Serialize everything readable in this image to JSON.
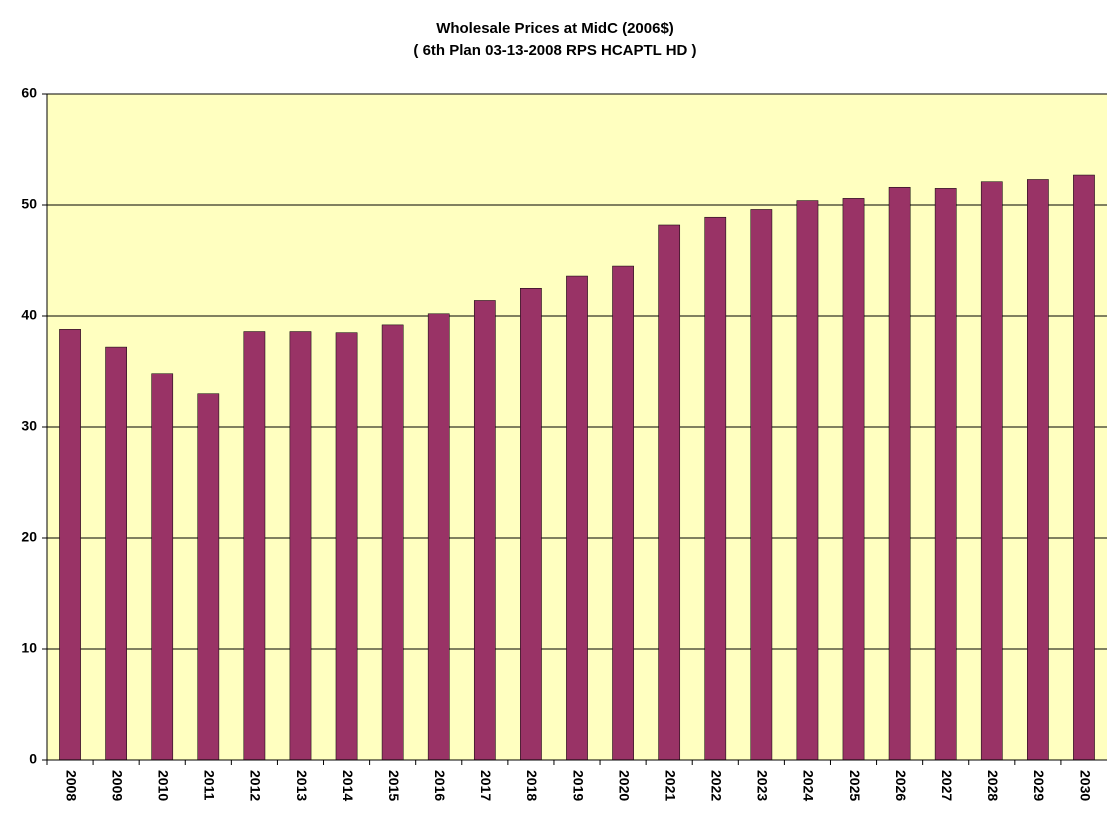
{
  "chart_data": {
    "type": "bar",
    "title": "Wholesale Prices at MidC (2006$)",
    "subtitle": "( 6th Plan 03-13-2008 RPS HCAPTL HD )",
    "categories": [
      "2008",
      "2009",
      "2010",
      "2011",
      "2012",
      "2013",
      "2014",
      "2015",
      "2016",
      "2017",
      "2018",
      "2019",
      "2020",
      "2021",
      "2022",
      "2023",
      "2024",
      "2025",
      "2026",
      "2027",
      "2028",
      "2029",
      "2030"
    ],
    "values": [
      38.8,
      37.2,
      34.8,
      33.0,
      38.6,
      38.6,
      38.5,
      39.2,
      40.2,
      41.4,
      42.5,
      43.6,
      44.5,
      48.2,
      48.9,
      49.6,
      50.4,
      50.6,
      51.6,
      51.5,
      52.1,
      52.3,
      52.7
    ],
    "color": "#993366",
    "background": "#ffffc0",
    "ylim": [
      0,
      60
    ],
    "yticks": [
      0,
      10,
      20,
      30,
      40,
      50,
      60
    ],
    "grid": true
  }
}
